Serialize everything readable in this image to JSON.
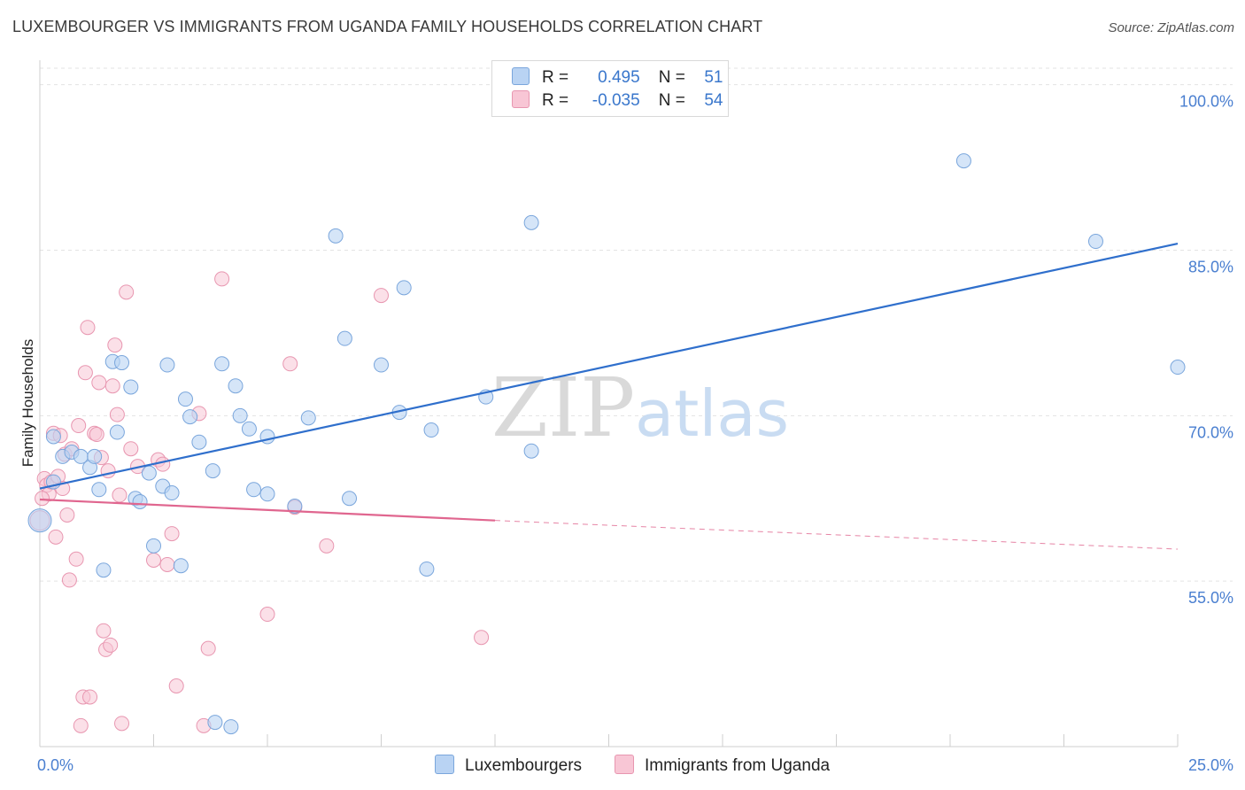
{
  "title": "LUXEMBOURGER VS IMMIGRANTS FROM UGANDA FAMILY HOUSEHOLDS CORRELATION CHART",
  "source": "Source: ZipAtlas.com",
  "watermark": {
    "zip": "ZIP",
    "atlas": "atlas"
  },
  "legend": {
    "rows": [
      {
        "r_label": "R =",
        "r_value": "0.495",
        "n_label": "N =",
        "n_value": "51"
      },
      {
        "r_label": "R =",
        "r_value": "-0.035",
        "n_label": "N =",
        "n_value": "54"
      }
    ]
  },
  "colors": {
    "blue_fill": "#b9d3f3",
    "blue_stroke": "#7aa6dc",
    "blue_line": "#2f6fcc",
    "pink_fill": "#f8c6d5",
    "pink_stroke": "#e896b0",
    "pink_line": "#e0668f",
    "tick_text": "#4a7fd0"
  },
  "chart_data": {
    "type": "scatter",
    "title": "LUXEMBOURGER VS IMMIGRANTS FROM UGANDA FAMILY HOUSEHOLDS CORRELATION CHART",
    "xlabel": "",
    "ylabel": "Family Households",
    "xlim": [
      0,
      25
    ],
    "ylim": [
      40,
      101.5
    ],
    "x_tick_labels": [
      "0.0%",
      "25.0%"
    ],
    "y_ticks": [
      55,
      70,
      85,
      100
    ],
    "y_tick_labels": [
      "55.0%",
      "70.0%",
      "85.0%",
      "100.0%"
    ],
    "grid": true,
    "legend_position": "bottom",
    "series": [
      {
        "name": "Luxembourgers",
        "color": "#b9d3f3",
        "points": [
          [
            0.0,
            60.5
          ],
          [
            0.3,
            64.0
          ],
          [
            0.3,
            68.1
          ],
          [
            0.5,
            66.3
          ],
          [
            0.7,
            66.7
          ],
          [
            0.9,
            66.3
          ],
          [
            1.1,
            65.3
          ],
          [
            1.3,
            63.3
          ],
          [
            1.4,
            56.0
          ],
          [
            1.6,
            74.9
          ],
          [
            1.7,
            68.5
          ],
          [
            1.8,
            74.8
          ],
          [
            2.0,
            72.6
          ],
          [
            2.1,
            62.5
          ],
          [
            2.2,
            62.2
          ],
          [
            2.4,
            64.8
          ],
          [
            2.5,
            58.2
          ],
          [
            2.7,
            63.6
          ],
          [
            2.8,
            74.6
          ],
          [
            3.1,
            56.4
          ],
          [
            3.2,
            71.5
          ],
          [
            3.3,
            69.9
          ],
          [
            3.5,
            67.6
          ],
          [
            3.8,
            65.0
          ],
          [
            4.0,
            74.7
          ],
          [
            4.3,
            72.7
          ],
          [
            4.4,
            70.0
          ],
          [
            4.6,
            68.8
          ],
          [
            4.7,
            63.3
          ],
          [
            5.0,
            62.9
          ],
          [
            5.0,
            68.1
          ],
          [
            5.6,
            61.8
          ],
          [
            5.9,
            69.8
          ],
          [
            6.5,
            86.3
          ],
          [
            6.7,
            77.0
          ],
          [
            6.8,
            62.5
          ],
          [
            7.5,
            74.6
          ],
          [
            7.9,
            70.3
          ],
          [
            8.0,
            81.6
          ],
          [
            8.5,
            56.1
          ],
          [
            8.6,
            68.7
          ],
          [
            9.8,
            71.7
          ],
          [
            10.8,
            66.8
          ],
          [
            10.8,
            87.5
          ],
          [
            20.3,
            93.1
          ],
          [
            23.2,
            85.8
          ],
          [
            25.0,
            74.4
          ],
          [
            3.85,
            42.2
          ],
          [
            4.2,
            41.8
          ],
          [
            1.2,
            66.3
          ],
          [
            2.9,
            63.0
          ]
        ],
        "trend": {
          "x0": 0,
          "y0": 63.4,
          "x1": 25,
          "y1": 85.6
        }
      },
      {
        "name": "Immigrants from Uganda",
        "color": "#f8c6d5",
        "points": [
          [
            0.0,
            60.5
          ],
          [
            0.1,
            64.3
          ],
          [
            0.15,
            63.7
          ],
          [
            0.2,
            62.9
          ],
          [
            0.25,
            64.0
          ],
          [
            0.3,
            68.4
          ],
          [
            0.35,
            59.0
          ],
          [
            0.4,
            64.5
          ],
          [
            0.45,
            68.2
          ],
          [
            0.5,
            63.4
          ],
          [
            0.55,
            66.5
          ],
          [
            0.6,
            61.0
          ],
          [
            0.65,
            55.1
          ],
          [
            0.7,
            67.0
          ],
          [
            0.8,
            57.0
          ],
          [
            0.85,
            69.1
          ],
          [
            0.9,
            41.9
          ],
          [
            0.95,
            44.5
          ],
          [
            1.0,
            73.9
          ],
          [
            1.05,
            78.0
          ],
          [
            1.1,
            44.5
          ],
          [
            1.2,
            68.4
          ],
          [
            1.3,
            73.0
          ],
          [
            1.35,
            66.2
          ],
          [
            1.4,
            50.5
          ],
          [
            1.45,
            48.8
          ],
          [
            1.5,
            65.0
          ],
          [
            1.55,
            49.2
          ],
          [
            1.6,
            72.7
          ],
          [
            1.65,
            76.4
          ],
          [
            1.7,
            70.1
          ],
          [
            1.75,
            62.8
          ],
          [
            1.8,
            42.1
          ],
          [
            1.9,
            81.2
          ],
          [
            2.0,
            67.0
          ],
          [
            2.15,
            65.4
          ],
          [
            2.5,
            56.9
          ],
          [
            2.6,
            66.0
          ],
          [
            2.7,
            65.6
          ],
          [
            2.8,
            56.5
          ],
          [
            2.9,
            59.3
          ],
          [
            3.0,
            45.5
          ],
          [
            3.5,
            70.2
          ],
          [
            3.6,
            41.9
          ],
          [
            3.7,
            48.9
          ],
          [
            4.0,
            82.4
          ],
          [
            5.0,
            52.0
          ],
          [
            5.5,
            74.7
          ],
          [
            5.6,
            61.7
          ],
          [
            6.3,
            58.2
          ],
          [
            7.5,
            80.9
          ],
          [
            9.7,
            49.9
          ],
          [
            0.05,
            62.5
          ],
          [
            1.25,
            68.3
          ]
        ],
        "trend": {
          "x0": 0,
          "y0": 62.4,
          "x1": 10,
          "y1": 60.5
        },
        "trend_dashed": {
          "x0": 10,
          "y0": 60.5,
          "x1": 25,
          "y1": 57.9
        }
      }
    ]
  }
}
